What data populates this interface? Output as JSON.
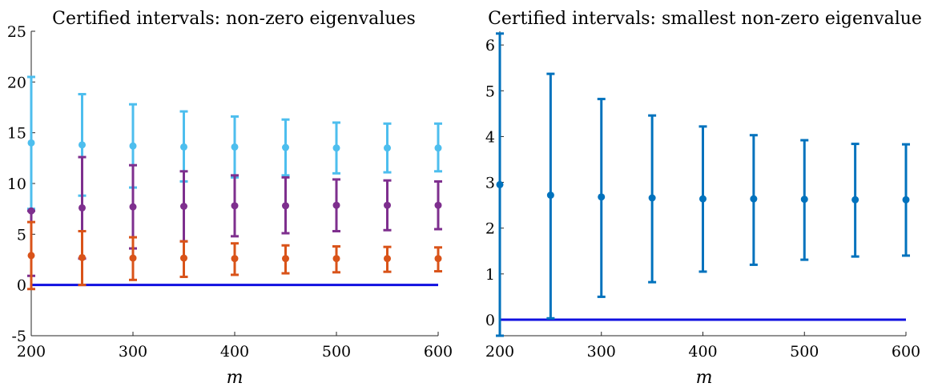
{
  "colors": {
    "zero_line": "#1010e0",
    "light_blue": "#4dbeee",
    "purple": "#7e2f8e",
    "orange": "#d95319",
    "blue": "#0072bd"
  },
  "chart_data": [
    {
      "type": "errorbar",
      "title": "Certified intervals: non-zero eigenvalues",
      "xlabel": "m",
      "ylabel": "",
      "xlim": [
        200,
        600
      ],
      "ylim": [
        -5,
        25
      ],
      "xticks": [
        "200",
        "300",
        "400",
        "500",
        "600"
      ],
      "yticks": [
        "-5",
        "0",
        "5",
        "10",
        "15",
        "20",
        "25"
      ],
      "grid": false,
      "reference_line": {
        "y": 0,
        "color": "#1010e0"
      },
      "x": [
        200,
        250,
        300,
        350,
        400,
        450,
        500,
        550,
        600
      ],
      "series": [
        {
          "color": "#4dbeee",
          "values": [
            14.0,
            13.8,
            13.7,
            13.6,
            13.6,
            13.55,
            13.5,
            13.5,
            13.5
          ],
          "lower": [
            7.5,
            8.8,
            9.6,
            10.2,
            10.6,
            10.8,
            11.0,
            11.1,
            11.2
          ],
          "upper": [
            20.5,
            18.8,
            17.8,
            17.1,
            16.6,
            16.3,
            16.0,
            15.9,
            15.9
          ]
        },
        {
          "color": "#7e2f8e",
          "values": [
            7.3,
            7.6,
            7.7,
            7.75,
            7.8,
            7.8,
            7.85,
            7.85,
            7.85
          ],
          "lower": [
            0.9,
            2.6,
            3.6,
            4.3,
            4.8,
            5.1,
            5.3,
            5.4,
            5.5
          ],
          "upper": [
            7.3,
            12.6,
            11.8,
            11.2,
            10.8,
            10.6,
            10.4,
            10.3,
            10.2
          ]
        },
        {
          "color": "#d95319",
          "values": [
            2.9,
            2.7,
            2.65,
            2.65,
            2.6,
            2.6,
            2.6,
            2.6,
            2.6
          ],
          "lower": [
            -0.4,
            0.0,
            0.5,
            0.8,
            1.0,
            1.15,
            1.25,
            1.3,
            1.35
          ],
          "upper": [
            6.2,
            5.3,
            4.7,
            4.3,
            4.1,
            3.9,
            3.8,
            3.75,
            3.7
          ]
        }
      ]
    },
    {
      "type": "errorbar",
      "title": "Certified intervals: smallest non-zero eigenvalue",
      "xlabel": "m",
      "ylabel": "",
      "xlim": [
        200,
        600
      ],
      "ylim": [
        -0.35,
        6.3
      ],
      "xticks": [
        "200",
        "300",
        "400",
        "500",
        "600"
      ],
      "yticks": [
        "0",
        "1",
        "2",
        "3",
        "4",
        "5",
        "6"
      ],
      "grid": false,
      "reference_line": {
        "y": 0,
        "color": "#1010e0"
      },
      "x": [
        200,
        250,
        300,
        350,
        400,
        450,
        500,
        550,
        600
      ],
      "series": [
        {
          "color": "#0072bd",
          "values": [
            2.95,
            2.72,
            2.68,
            2.66,
            2.64,
            2.64,
            2.63,
            2.62,
            2.62
          ],
          "lower": [
            -0.35,
            0.03,
            0.5,
            0.82,
            1.05,
            1.2,
            1.31,
            1.38,
            1.4
          ],
          "upper": [
            6.25,
            5.37,
            4.82,
            4.46,
            4.22,
            4.03,
            3.92,
            3.84,
            3.83
          ]
        }
      ]
    }
  ]
}
